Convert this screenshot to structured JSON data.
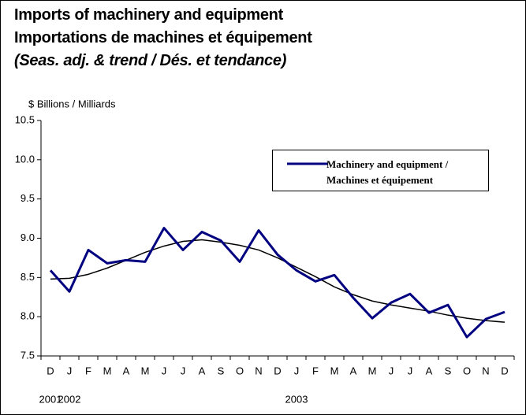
{
  "chart_data": {
    "type": "line",
    "title": "Imports of machinery and equipment",
    "subtitle": "Importations de machines et équipement",
    "note": "(Seas. adj. & trend / Dés. et tendance)",
    "y_label": "$ Billions / Milliards",
    "categories": [
      "D",
      "J",
      "F",
      "M",
      "A",
      "M",
      "J",
      "J",
      "A",
      "S",
      "O",
      "N",
      "D",
      "J",
      "F",
      "M",
      "A",
      "M",
      "J",
      "J",
      "A",
      "S",
      "O",
      "N",
      "D"
    ],
    "year_labels": [
      "2001",
      "2002",
      null,
      null,
      null,
      null,
      null,
      null,
      null,
      null,
      null,
      null,
      null,
      "2003",
      null,
      null,
      null,
      null,
      null,
      null,
      null,
      null,
      null,
      null,
      null
    ],
    "series": [
      {
        "name": "Machinery and equipment / Machines et équipement",
        "color": "#000080",
        "values": [
          8.59,
          8.32,
          8.85,
          8.68,
          8.72,
          8.7,
          9.13,
          8.85,
          9.08,
          8.97,
          8.7,
          9.1,
          8.79,
          8.59,
          8.45,
          8.53,
          8.24,
          7.98,
          8.18,
          8.29,
          8.05,
          8.15,
          7.74,
          7.97,
          8.06
        ]
      },
      {
        "color": "#000000",
        "values": [
          8.48,
          8.49,
          8.54,
          8.62,
          8.72,
          8.82,
          8.9,
          8.96,
          8.98,
          8.95,
          8.91,
          8.85,
          8.75,
          8.63,
          8.51,
          8.38,
          8.28,
          8.2,
          8.15,
          8.11,
          8.07,
          8.02,
          7.98,
          7.95,
          7.93
        ]
      }
    ],
    "ylim": [
      7.5,
      10.5
    ],
    "yticks": [
      7.5,
      {
        "value": 8,
        "label": "8.0"
      },
      8.5,
      {
        "value": 9,
        "label": "9.0"
      },
      9.5,
      {
        "value": 10,
        "label": "10.0"
      },
      10.5
    ]
  }
}
